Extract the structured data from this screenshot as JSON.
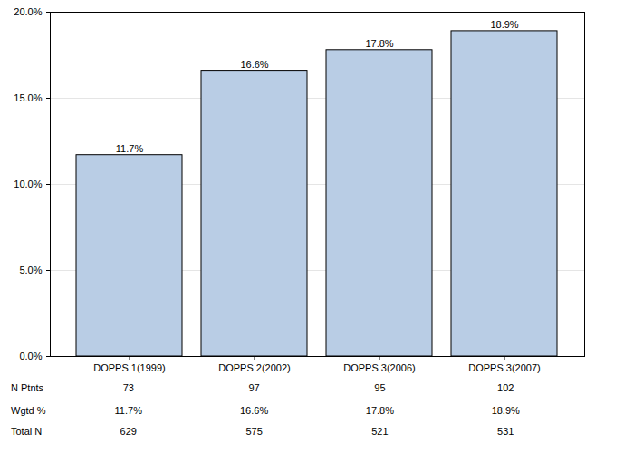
{
  "chart_data": {
    "type": "bar",
    "categories": [
      "DOPPS 1(1999)",
      "DOPPS 2(2002)",
      "DOPPS 3(2006)",
      "DOPPS 3(2007)"
    ],
    "values": [
      11.7,
      16.6,
      17.8,
      18.9
    ],
    "value_labels": [
      "11.7%",
      "16.6%",
      "17.8%",
      "18.9%"
    ],
    "data_labels": true,
    "color": "#b9cde5",
    "ylim": [
      0,
      20
    ],
    "yticks": [
      {
        "value": 0,
        "label": "0.0%"
      },
      {
        "value": 5,
        "label": "5.0%"
      },
      {
        "value": 10,
        "label": "10.0%"
      },
      {
        "value": 15,
        "label": "15.0%"
      },
      {
        "value": 20,
        "label": "20.0%"
      }
    ],
    "grid": true,
    "table": {
      "rows": [
        {
          "label": "N Ptnts",
          "values": [
            "73",
            "97",
            "95",
            "102"
          ]
        },
        {
          "label": "Wgtd %",
          "values": [
            "11.7%",
            "16.6%",
            "17.8%",
            "18.9%"
          ]
        },
        {
          "label": "Total N",
          "values": [
            "629",
            "575",
            "521",
            "531"
          ]
        }
      ]
    }
  }
}
